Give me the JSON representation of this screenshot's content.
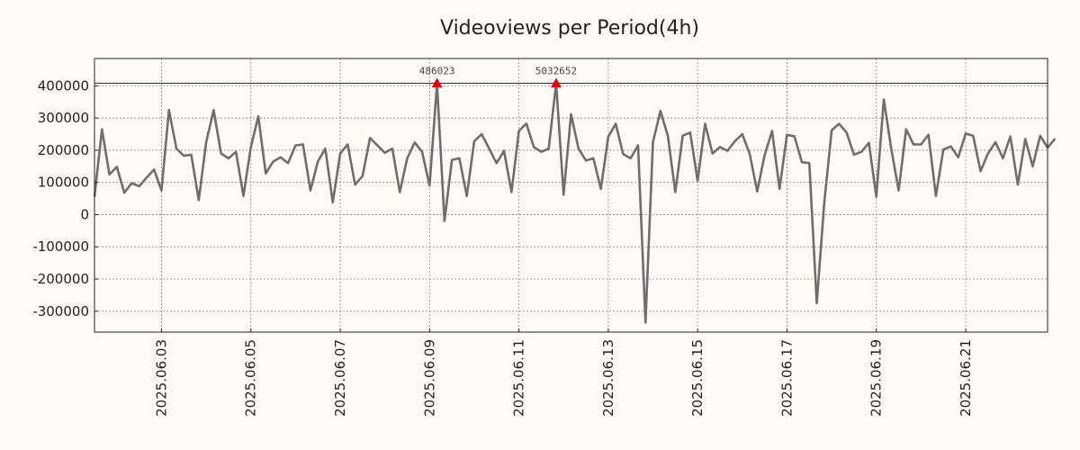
{
  "chart_data": {
    "type": "line",
    "title": "Videoviews per Period(4h)",
    "xlabel": "",
    "ylabel": "",
    "x_start": "2025.06.01 12:00",
    "x_step_hours": 4,
    "xlim": [
      "2025.06.01 12:00",
      "2025.06.22 20:00"
    ],
    "ylim": [
      -365000,
      485000
    ],
    "yticks": [
      -300000,
      -200000,
      -100000,
      0,
      100000,
      200000,
      300000,
      400000
    ],
    "ytick_labels": [
      "-300000",
      "-200000",
      "-100000",
      "0",
      "100000",
      "200000",
      "300000",
      "400000"
    ],
    "xticks": [
      "2025.06.03",
      "2025.06.05",
      "2025.06.07",
      "2025.06.09",
      "2025.06.11",
      "2025.06.13",
      "2025.06.15",
      "2025.06.17",
      "2025.06.19",
      "2025.06.21"
    ],
    "grid": true,
    "reference_line": 408000,
    "series_color": "#6e6e6e",
    "marker_color": "#e8000b",
    "annotations": [
      {
        "label": "486023",
        "x": "2025.06.09 04:00",
        "y": 408000
      },
      {
        "label": "5032652",
        "x": "2025.06.11 20:00",
        "y": 408000
      }
    ],
    "series": [
      {
        "values": [
          55000,
          265000,
          125000,
          148000,
          68000,
          98000,
          88000,
          115000,
          140000,
          75000,
          325000,
          205000,
          183000,
          186000,
          45000,
          225000,
          325000,
          190000,
          175000,
          195000,
          58000,
          210000,
          305000,
          128000,
          165000,
          178000,
          160000,
          215000,
          218000,
          75000,
          165000,
          205000,
          38000,
          190000,
          218000,
          93000,
          120000,
          238000,
          215000,
          192000,
          205000,
          70000,
          175000,
          224000,
          195000,
          90000,
          408000,
          -20000,
          170000,
          175000,
          58000,
          228000,
          250000,
          205000,
          160000,
          198000,
          70000,
          260000,
          283000,
          210000,
          195000,
          205000,
          408000,
          62000,
          312000,
          205000,
          168000,
          175000,
          80000,
          242000,
          282000,
          188000,
          175000,
          215000,
          -335000,
          225000,
          322000,
          245000,
          70000,
          245000,
          255000,
          105000,
          282000,
          190000,
          210000,
          198000,
          228000,
          250000,
          188000,
          72000,
          185000,
          260000,
          80000,
          248000,
          243000,
          163000,
          160000,
          -275000,
          35000,
          262000,
          282000,
          255000,
          186000,
          195000,
          223000,
          55000,
          358000,
          205000,
          75000,
          265000,
          218000,
          218000,
          248000,
          58000,
          202000,
          212000,
          178000,
          252000,
          245000,
          135000,
          190000,
          225000,
          175000,
          243000,
          93000,
          235000,
          150000,
          245000,
          208000,
          236000
        ]
      }
    ]
  }
}
